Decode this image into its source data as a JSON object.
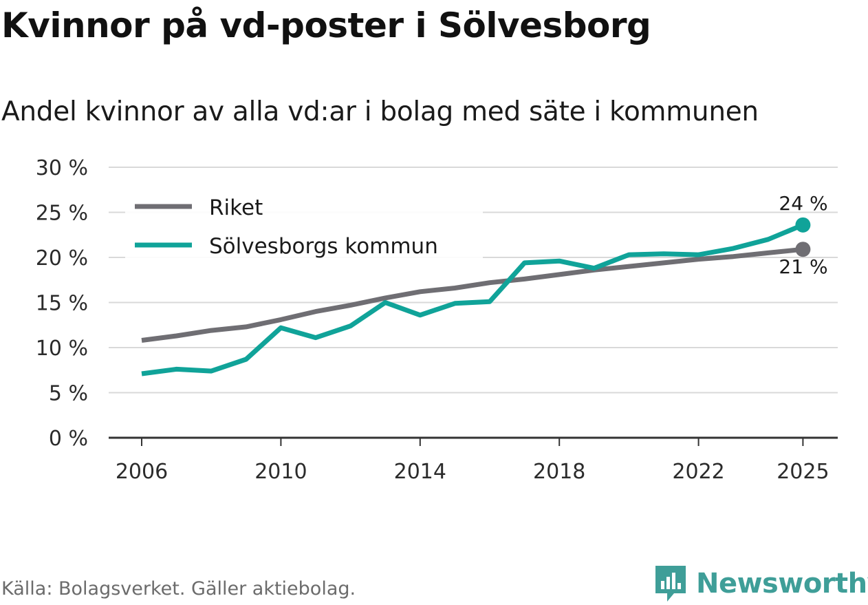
{
  "title": "Kvinnor på vd-poster i Sölvesborg",
  "subtitle": "Andel kvinnor av alla vd:ar i bolag med säte i kommunen",
  "source": "Källa: Bolagsverket. Gäller aktiebolag.",
  "brand": "Newsworthy",
  "colors": {
    "riket": "#6f6e73",
    "kommun": "#10a399",
    "grid": "#d9d9d9",
    "axis": "#333333",
    "brand": "#3f9e98"
  },
  "chart_data": {
    "type": "line",
    "title": "Kvinnor på vd-poster i Sölvesborg",
    "subtitle": "Andel kvinnor av alla vd:ar i bolag med säte i kommunen",
    "xlabel": "",
    "ylabel": "",
    "x": [
      2006,
      2007,
      2008,
      2009,
      2010,
      2011,
      2012,
      2013,
      2014,
      2015,
      2016,
      2017,
      2018,
      2019,
      2020,
      2021,
      2022,
      2023,
      2024,
      2025
    ],
    "xlim": [
      2005,
      2026
    ],
    "xticks": [
      2006,
      2010,
      2014,
      2018,
      2022,
      2025
    ],
    "xtick_labels": [
      "2006",
      "2010",
      "2014",
      "2018",
      "2022",
      "2025"
    ],
    "ylim": [
      0,
      30
    ],
    "yticks": [
      0,
      5,
      10,
      15,
      20,
      25,
      30
    ],
    "ytick_labels": [
      "0 %",
      "5 %",
      "10 %",
      "15 %",
      "20 %",
      "25 %",
      "30 %"
    ],
    "grid": true,
    "legend_position": "top-left",
    "series": [
      {
        "name": "Riket",
        "color": "#6f6e73",
        "values": [
          10.8,
          11.3,
          11.9,
          12.3,
          13.1,
          14.0,
          14.7,
          15.5,
          16.2,
          16.6,
          17.2,
          17.6,
          18.1,
          18.6,
          19.0,
          19.4,
          19.8,
          20.1,
          20.5,
          20.9
        ],
        "end_label": "21 %"
      },
      {
        "name": "Sölvesborgs kommun",
        "color": "#10a399",
        "values": [
          7.1,
          7.6,
          7.4,
          8.7,
          12.2,
          11.1,
          12.4,
          15.0,
          13.6,
          14.9,
          15.1,
          19.4,
          19.6,
          18.8,
          20.3,
          20.4,
          20.3,
          21.0,
          22.0,
          23.6
        ],
        "end_label": "24 %"
      }
    ]
  }
}
